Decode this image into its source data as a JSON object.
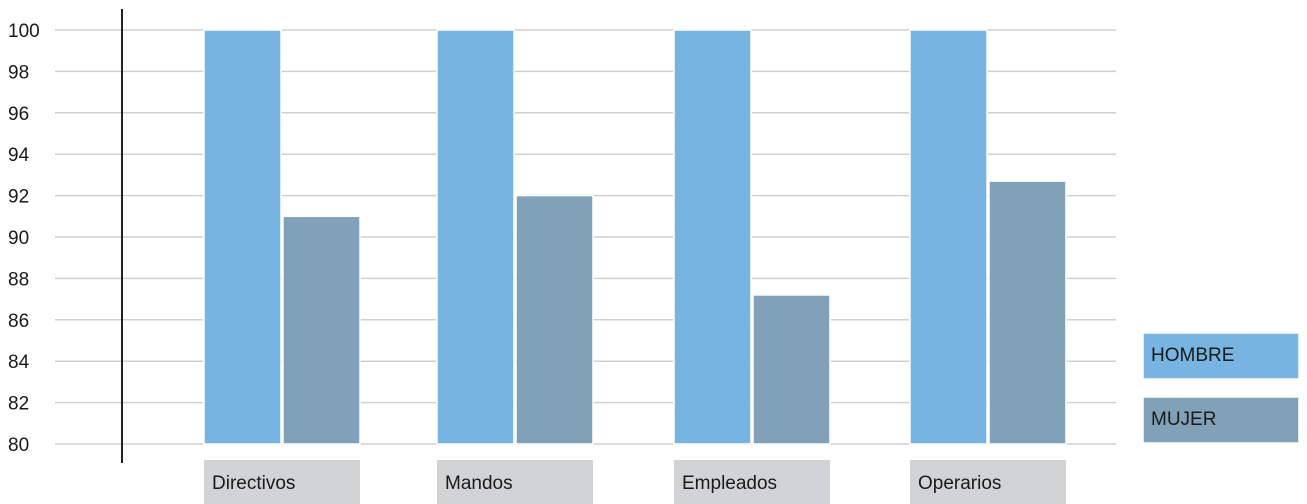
{
  "chart_data": {
    "type": "bar",
    "categories": [
      "Directivos",
      "Mandos",
      "Empleados",
      "Operarios"
    ],
    "series": [
      {
        "name": "HOMBRE",
        "values": [
          100,
          100,
          100,
          100
        ],
        "color": "#77b4e2"
      },
      {
        "name": "MUJER",
        "values": [
          91,
          92,
          87.2,
          92.7
        ],
        "color": "#80a1b7"
      }
    ],
    "title": "",
    "xlabel": "",
    "ylabel": "",
    "ylim": [
      80,
      100
    ],
    "yticks": [
      80,
      82,
      84,
      86,
      88,
      90,
      92,
      94,
      96,
      98,
      100
    ],
    "grid": true,
    "legend_position": "bottom-right",
    "category_label_bg": "#d1d3d5",
    "grid_color": "#d0d0d0",
    "axis_color": "#222222"
  }
}
